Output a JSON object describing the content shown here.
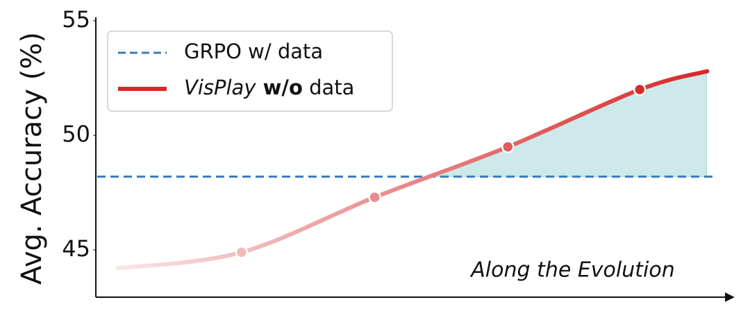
{
  "chart_data": {
    "type": "line",
    "ylabel": "Avg. Accuracy (%)",
    "xlabel": "Along the Evolution",
    "xlim": [
      0,
      100
    ],
    "ylim": [
      43,
      55
    ],
    "yticks": [
      45,
      50,
      55
    ],
    "baseline": {
      "name": "GRPO w/ data",
      "value": 48.2,
      "color": "#3a7bbf"
    },
    "series": [
      {
        "name": "VisPlay w/o data",
        "color": "#d62728",
        "color_start": "#fbe6e6",
        "x": [
          3.3,
          23.1,
          44.4,
          65.7,
          86.8,
          97.6
        ],
        "values": [
          44.2,
          44.9,
          47.3,
          49.5,
          52.0,
          52.8
        ]
      }
    ],
    "fill_color": "#cde9ea",
    "legend": "upper left"
  }
}
